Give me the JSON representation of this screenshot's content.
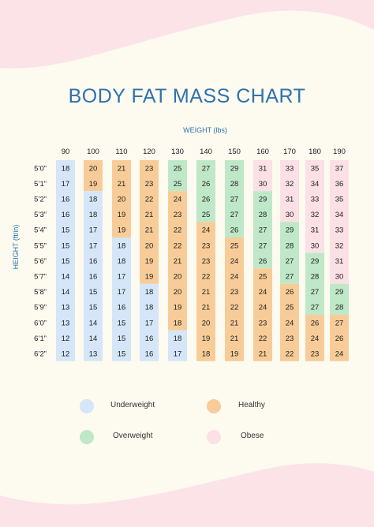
{
  "page": {
    "title": "BODY FAT MASS CHART",
    "x_axis_label": "WEIGHT (lbs)",
    "y_axis_label": "HEIGHT (ft/in)"
  },
  "colors": {
    "background": "#fdfaf0",
    "decoration": "#fbe3e7",
    "title": "#2f72ad",
    "Underweight": "#d4e6f7",
    "Healthy": "#f8cc98",
    "Overweight": "#bfe8c9",
    "Obese": "#fbe0e5"
  },
  "chart_data": {
    "type": "table",
    "title": "BODY FAT MASS CHART",
    "xlabel": "WEIGHT (lbs)",
    "ylabel": "HEIGHT (ft/in)",
    "weights": [
      "90",
      "100",
      "110",
      "120",
      "130",
      "140",
      "150",
      "160",
      "170",
      "180",
      "190"
    ],
    "heights": [
      "5’0”",
      "5’1”",
      "5’2”",
      "5’3”",
      "5’4”",
      "5’5”",
      "5’6”",
      "5’7”",
      "5’8”",
      "5’9”",
      "6’0”",
      "6’1”",
      "6’2”"
    ],
    "values": [
      [
        18,
        20,
        21,
        23,
        25,
        27,
        29,
        31,
        33,
        35,
        37
      ],
      [
        17,
        19,
        21,
        23,
        25,
        26,
        28,
        30,
        32,
        34,
        36
      ],
      [
        16,
        18,
        20,
        22,
        24,
        26,
        27,
        29,
        31,
        33,
        35
      ],
      [
        16,
        18,
        19,
        21,
        23,
        25,
        27,
        28,
        30,
        32,
        34
      ],
      [
        15,
        17,
        19,
        21,
        22,
        24,
        26,
        27,
        29,
        31,
        33
      ],
      [
        15,
        17,
        18,
        20,
        22,
        23,
        25,
        27,
        28,
        30,
        32
      ],
      [
        15,
        16,
        18,
        19,
        21,
        23,
        24,
        26,
        27,
        29,
        31
      ],
      [
        14,
        16,
        17,
        19,
        20,
        22,
        24,
        25,
        27,
        28,
        30
      ],
      [
        14,
        15,
        17,
        18,
        20,
        21,
        23,
        24,
        26,
        27,
        29
      ],
      [
        13,
        15,
        16,
        18,
        19,
        21,
        22,
        24,
        25,
        27,
        28
      ],
      [
        13,
        14,
        15,
        17,
        18,
        20,
        21,
        23,
        24,
        26,
        27
      ],
      [
        12,
        14,
        15,
        16,
        18,
        19,
        21,
        22,
        23,
        24,
        26
      ],
      [
        12,
        13,
        15,
        16,
        17,
        18,
        19,
        21,
        22,
        23,
        24
      ]
    ],
    "categories": [
      [
        "U",
        "H",
        "H",
        "H",
        "O",
        "O",
        "O",
        "B",
        "B",
        "B",
        "B"
      ],
      [
        "U",
        "H",
        "H",
        "H",
        "O",
        "O",
        "O",
        "B",
        "B",
        "B",
        "B"
      ],
      [
        "U",
        "U",
        "H",
        "H",
        "H",
        "O",
        "O",
        "O",
        "B",
        "B",
        "B"
      ],
      [
        "U",
        "U",
        "H",
        "H",
        "H",
        "O",
        "O",
        "O",
        "B",
        "B",
        "B"
      ],
      [
        "U",
        "U",
        "H",
        "H",
        "H",
        "H",
        "O",
        "O",
        "O",
        "B",
        "B"
      ],
      [
        "U",
        "U",
        "U",
        "H",
        "H",
        "H",
        "H",
        "O",
        "O",
        "B",
        "B"
      ],
      [
        "U",
        "U",
        "U",
        "H",
        "H",
        "H",
        "H",
        "O",
        "O",
        "O",
        "B"
      ],
      [
        "U",
        "U",
        "U",
        "H",
        "H",
        "H",
        "H",
        "H",
        "O",
        "O",
        "B"
      ],
      [
        "U",
        "U",
        "U",
        "U",
        "H",
        "H",
        "H",
        "H",
        "H",
        "O",
        "O"
      ],
      [
        "U",
        "U",
        "U",
        "U",
        "H",
        "H",
        "H",
        "H",
        "H",
        "O",
        "O"
      ],
      [
        "U",
        "U",
        "U",
        "U",
        "H",
        "H",
        "H",
        "H",
        "H",
        "H",
        "H"
      ],
      [
        "U",
        "U",
        "U",
        "U",
        "U",
        "H",
        "H",
        "H",
        "H",
        "H",
        "H"
      ],
      [
        "U",
        "U",
        "U",
        "U",
        "U",
        "H",
        "H",
        "H",
        "H",
        "H",
        "H"
      ]
    ],
    "legend": [
      {
        "key": "U",
        "label": "Underweight"
      },
      {
        "key": "H",
        "label": "Healthy"
      },
      {
        "key": "O",
        "label": "Overweight"
      },
      {
        "key": "B",
        "label": "Obese"
      }
    ]
  }
}
